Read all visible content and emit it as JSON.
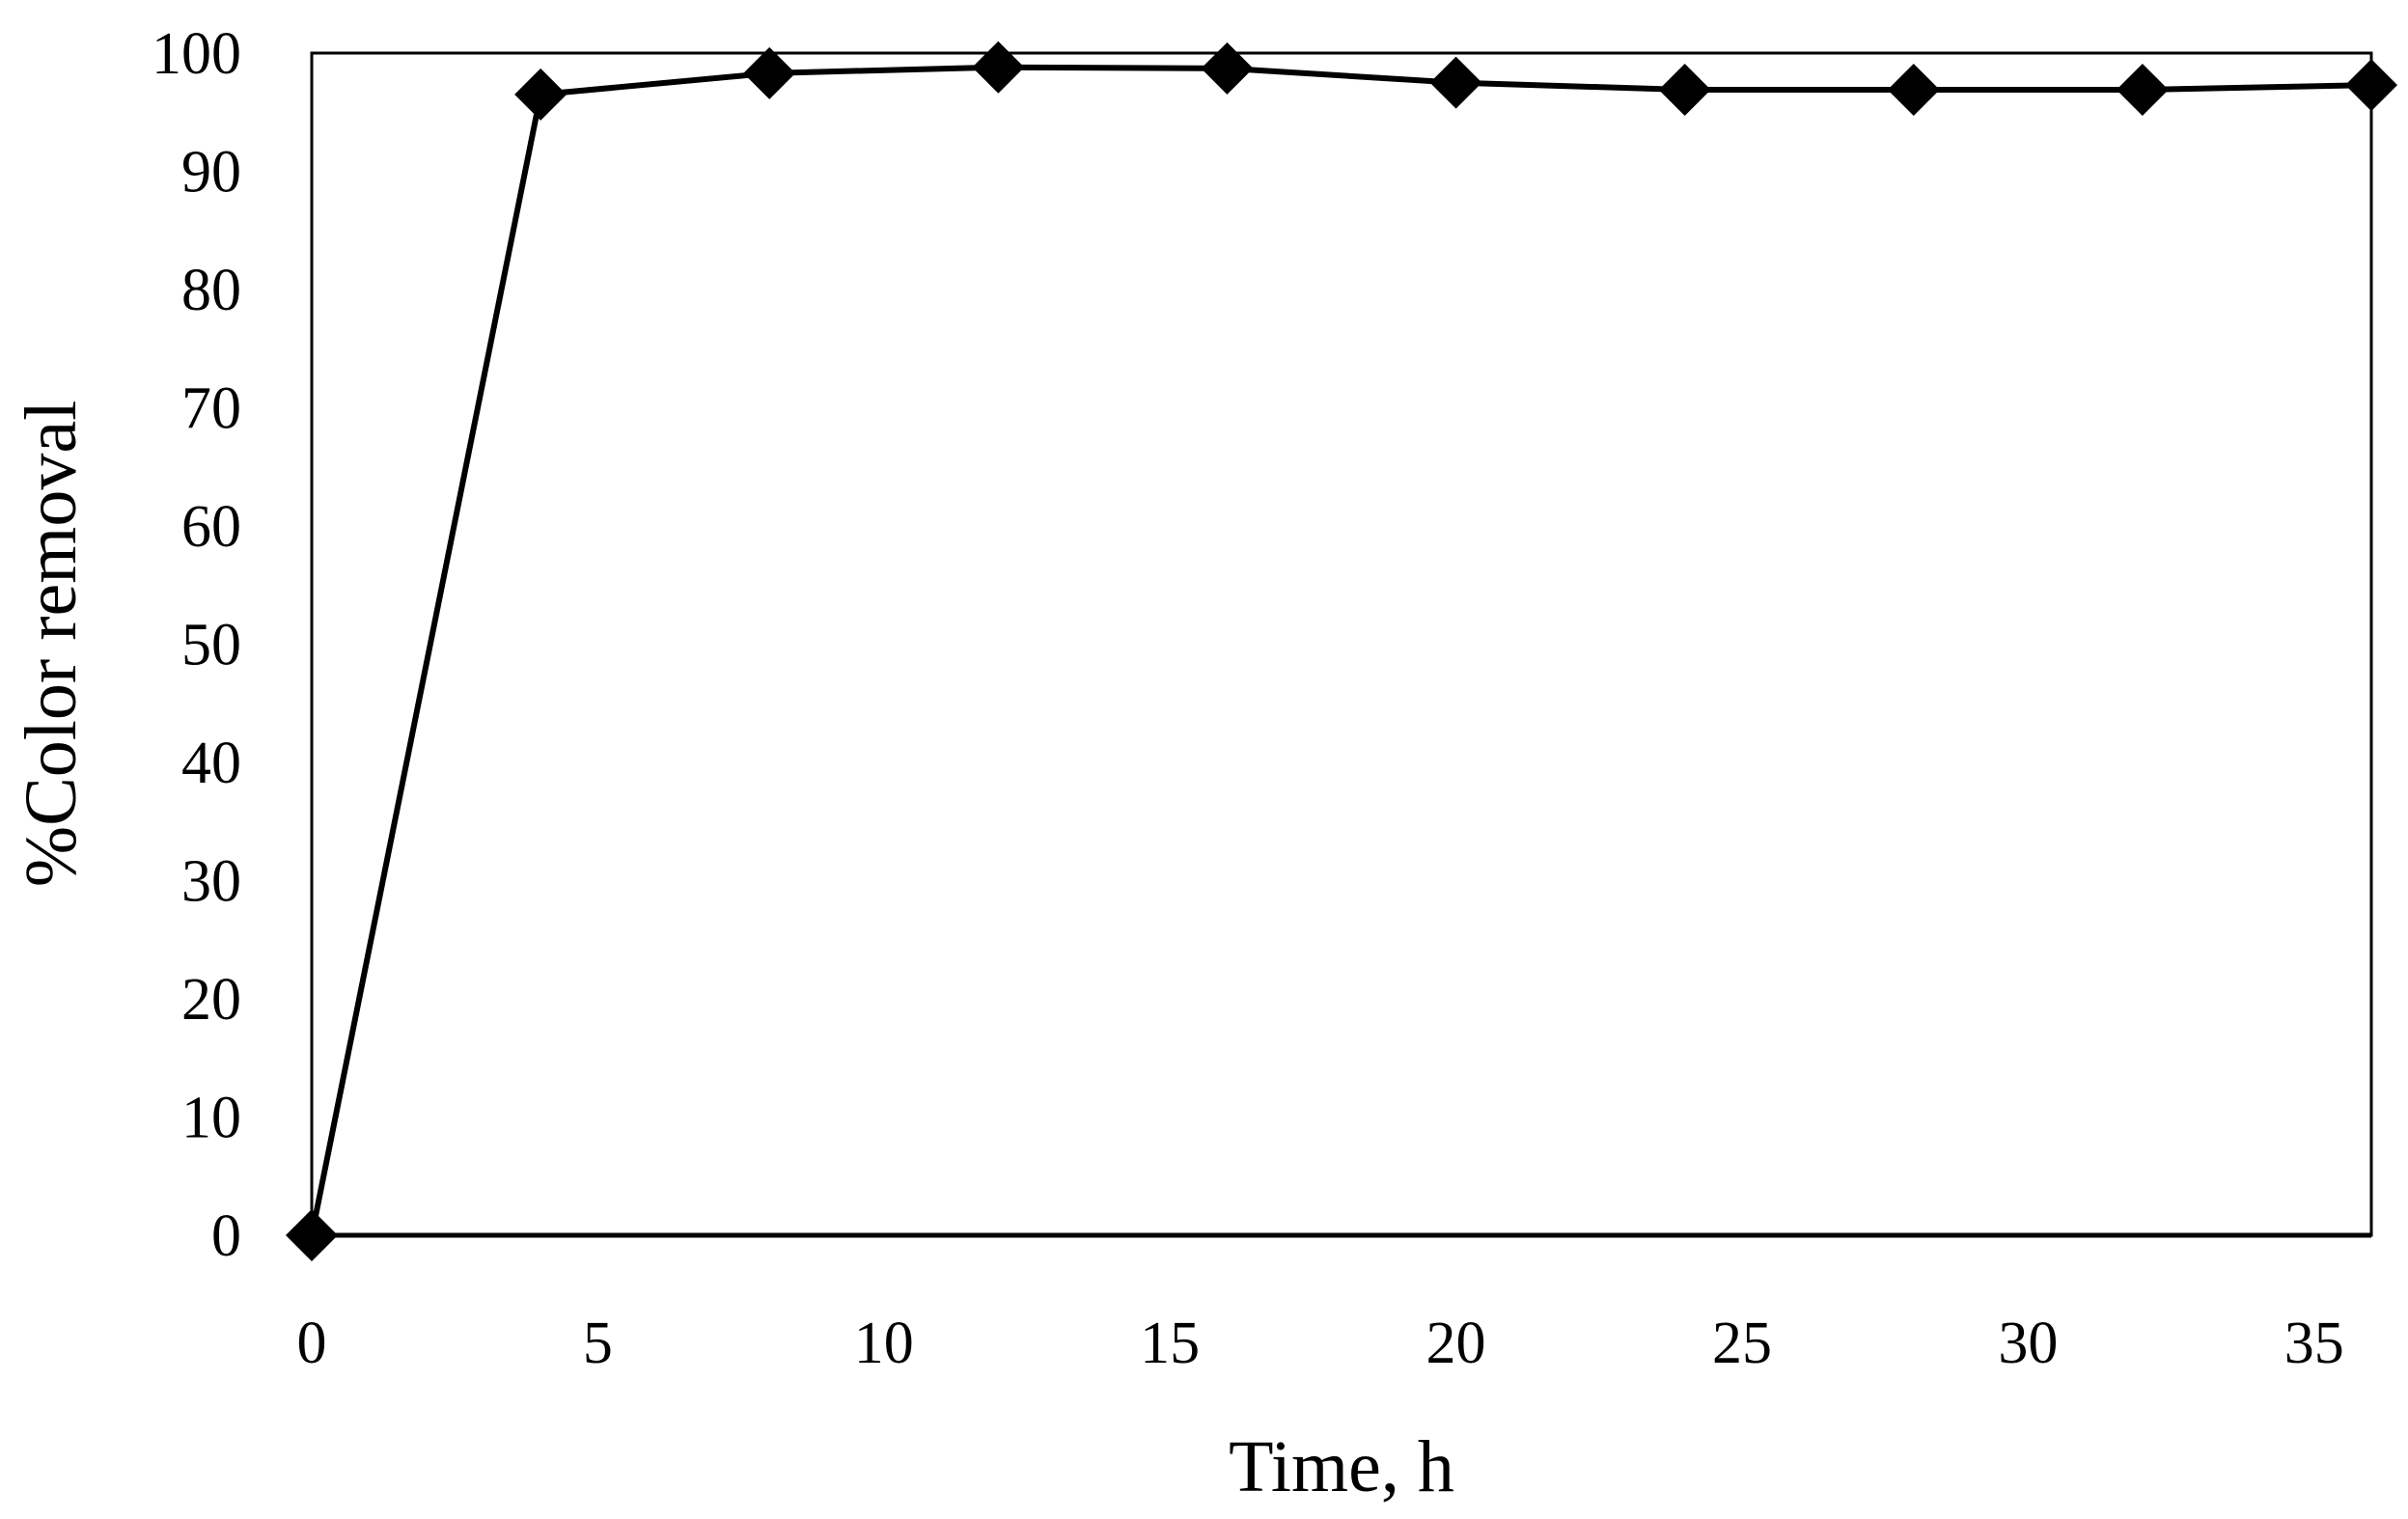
{
  "chart_data": {
    "type": "line",
    "title": "",
    "xlabel": "Time, h",
    "ylabel": "%Color removal",
    "xlim": [
      0,
      36
    ],
    "ylim": [
      0,
      100
    ],
    "xticks": [
      0,
      5,
      10,
      15,
      20,
      25,
      30,
      35
    ],
    "yticks": [
      0,
      10,
      20,
      30,
      40,
      50,
      60,
      70,
      80,
      90,
      100
    ],
    "grid": false,
    "legend": "none",
    "marker": "diamond",
    "series": [
      {
        "color": "#000000",
        "x": [
          0,
          4,
          8,
          12,
          16,
          20,
          24,
          28,
          32,
          36
        ],
        "y": [
          0,
          96.5,
          98.3,
          98.8,
          98.7,
          97.5,
          96.9,
          96.9,
          96.9,
          97.3
        ]
      }
    ]
  }
}
